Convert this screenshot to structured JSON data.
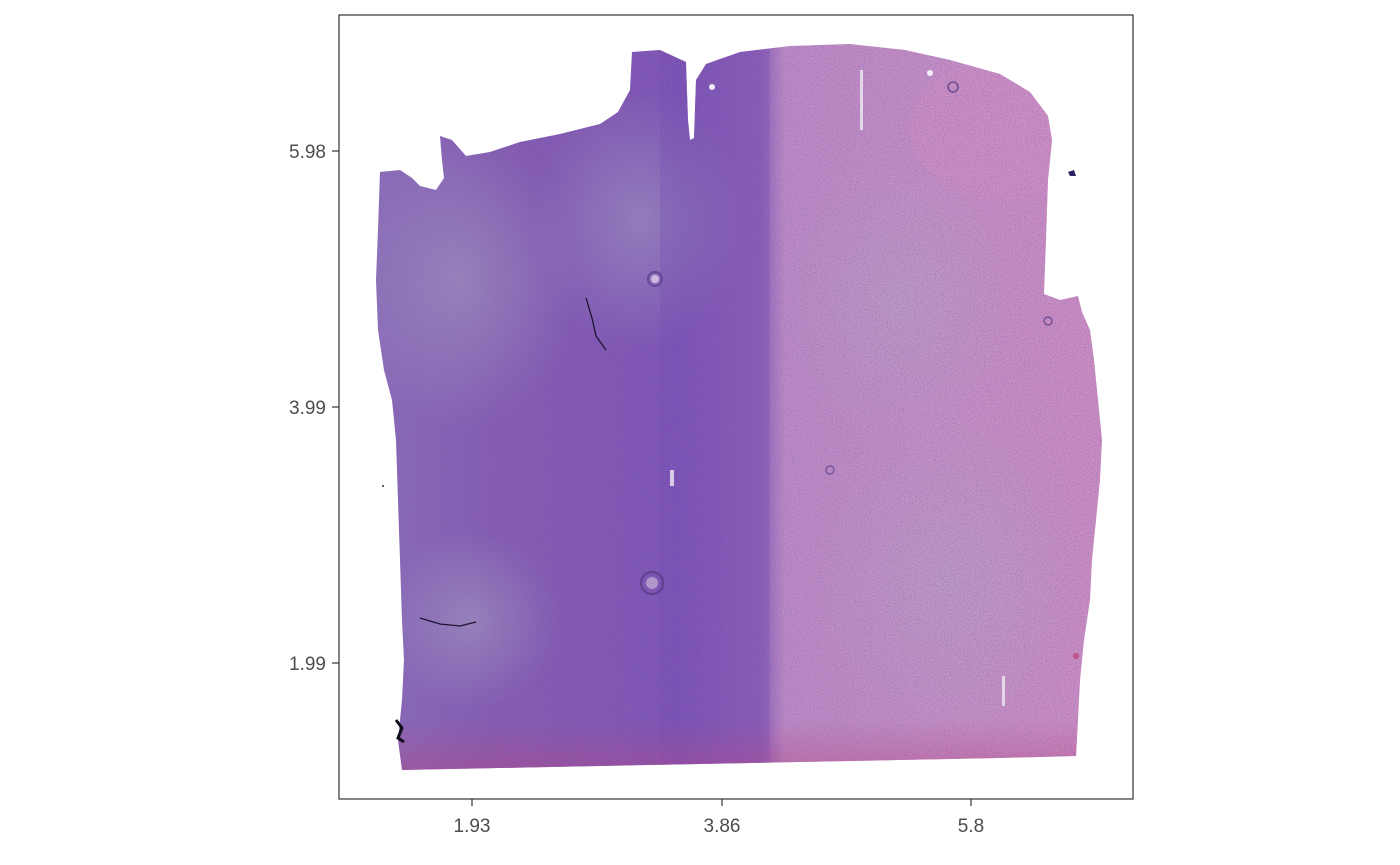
{
  "figure": {
    "description_type": "spatial tissue image plot",
    "panel_background": "#ffffff",
    "panel_border_color": "#333333",
    "tick_color": "#333333",
    "tick_label_color": "#4d4d4d",
    "grid": false
  },
  "x_axis": {
    "label": "",
    "ticks": [
      "1.93",
      "3.86",
      "5.8"
    ]
  },
  "y_axis": {
    "label": "",
    "ticks": [
      "5.98",
      "3.99",
      "1.99"
    ]
  },
  "tissue": {
    "stain": "H&E",
    "colors": {
      "dense_purple": "#7a52b0",
      "mid_purple": "#8c63b8",
      "pink": "#c27fba",
      "light_pink": "#d49ac6",
      "nuclei": "#3a2a78",
      "edge_red": "#c0407a"
    }
  }
}
